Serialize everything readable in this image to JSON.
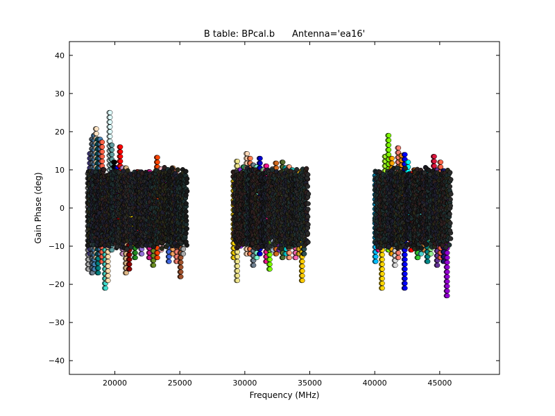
{
  "chart_data": {
    "type": "scatter",
    "title": "B table: BPcal.b      Antenna='ea16'",
    "xlabel": "Frequency (MHz)",
    "ylabel": "Gain Phase (deg)",
    "xlim": [
      16500,
      49600
    ],
    "ylim": [
      -43.6,
      43.6
    ],
    "xticks": [
      20000,
      25000,
      30000,
      35000,
      40000,
      45000
    ],
    "xtick_labels": [
      "20000",
      "25000",
      "30000",
      "35000",
      "40000",
      "45000"
    ],
    "yticks": [
      -40,
      -30,
      -20,
      -10,
      0,
      10,
      20,
      30,
      40
    ],
    "ytick_labels": [
      "−40",
      "−30",
      "−20",
      "−10",
      "0",
      "10",
      "20",
      "30",
      "40"
    ],
    "grid": false,
    "marker": "circle",
    "note": "columns: per-channel phase range [frequency MHz, min deg, max deg, color]",
    "columns": [
      [
        17900,
        -16,
        10,
        "#aaaaaa"
      ],
      [
        18050,
        -12,
        15,
        "#6a5acd"
      ],
      [
        18200,
        -17,
        19,
        "#708090"
      ],
      [
        18350,
        -16,
        20,
        "#4682b4"
      ],
      [
        18500,
        -13,
        21,
        "#ffe4c4"
      ],
      [
        18650,
        -17,
        19,
        "#008080"
      ],
      [
        18800,
        -12,
        19,
        "#4682b4"
      ],
      [
        18950,
        -14,
        18,
        "#ff6347"
      ],
      [
        19200,
        -21,
        -5,
        "#40e0d0"
      ],
      [
        19400,
        -19,
        -6,
        "#ffdead"
      ],
      [
        19550,
        5,
        26,
        "#e0ffff"
      ],
      [
        19700,
        -11,
        17,
        "#5f9ea0"
      ],
      [
        19900,
        -8,
        12,
        "#000000"
      ],
      [
        20150,
        -7,
        11,
        "#0000ff"
      ],
      [
        20350,
        -9,
        17,
        "#ff0000"
      ],
      [
        20550,
        -12,
        11,
        "#dda0dd"
      ],
      [
        20800,
        -17,
        11,
        "#deb887"
      ],
      [
        21050,
        -16,
        -9,
        "#8b0000"
      ],
      [
        21300,
        -10,
        7,
        "#ffd700"
      ],
      [
        21500,
        -13,
        6,
        "#228b22"
      ],
      [
        21700,
        -8,
        10,
        "#b22222"
      ],
      [
        22000,
        -12,
        8,
        "#9370db"
      ],
      [
        22300,
        -7,
        7,
        "#3cb371"
      ],
      [
        22600,
        -13,
        10,
        "#c71585"
      ],
      [
        22900,
        -15,
        9,
        "#6b8e23"
      ],
      [
        23200,
        -13,
        14,
        "#ff4500"
      ],
      [
        23500,
        -11,
        11,
        "#ffb6c1"
      ],
      [
        23800,
        -5,
        10,
        "#800080"
      ],
      [
        24100,
        -14,
        7,
        "#4169e1"
      ],
      [
        24400,
        -12,
        11,
        "#f4a460"
      ],
      [
        24700,
        -14,
        10,
        "#fa8072"
      ],
      [
        25000,
        -18,
        6,
        "#a0522d"
      ],
      [
        25200,
        -12,
        8,
        "#a9a9a9"
      ],
      [
        29100,
        -13,
        9,
        "#ffd700"
      ],
      [
        29350,
        -19,
        13,
        "#f0e68c"
      ],
      [
        29600,
        -10,
        10,
        "#8a2be2"
      ],
      [
        29850,
        -8,
        11,
        "#2e8b57"
      ],
      [
        30100,
        -12,
        15,
        "#ffdab9"
      ],
      [
        30350,
        -12,
        14,
        "#ff7f50"
      ],
      [
        30600,
        -15,
        12,
        "#708090"
      ],
      [
        30850,
        -13,
        11,
        "#7fffd4"
      ],
      [
        31100,
        -12,
        13,
        "#0000cd"
      ],
      [
        31350,
        -10,
        10,
        "#8fbc8f"
      ],
      [
        31600,
        -14,
        11,
        "#ff1493"
      ],
      [
        31850,
        -16,
        10,
        "#7cfc00"
      ],
      [
        32100,
        -11,
        11,
        "#b0c4de"
      ],
      [
        32350,
        -12,
        12,
        "#d2691e"
      ],
      [
        32600,
        -11,
        9,
        "#9932cc"
      ],
      [
        32850,
        -13,
        12,
        "#556b2f"
      ],
      [
        33100,
        -12,
        11,
        "#00ced1"
      ],
      [
        33350,
        -13,
        11,
        "#ffa07a"
      ],
      [
        33600,
        -10,
        10,
        "#20b2aa"
      ],
      [
        33850,
        -13,
        9,
        "#ff69b4"
      ],
      [
        34100,
        -12,
        10,
        "#daa520"
      ],
      [
        34350,
        -19,
        10,
        "#ffcc00"
      ],
      [
        34500,
        -12,
        9,
        "#2f4f4f"
      ],
      [
        40000,
        -14,
        9,
        "#00bfff"
      ],
      [
        40250,
        -11,
        8,
        "#ff1493"
      ],
      [
        40500,
        -21,
        9,
        "#ffd700"
      ],
      [
        40750,
        -9,
        14,
        "#adff2f"
      ],
      [
        41000,
        -11,
        19,
        "#7fff00"
      ],
      [
        41250,
        -12,
        13,
        "#ffa500"
      ],
      [
        41500,
        -15,
        10,
        "#dcdcdc"
      ],
      [
        41750,
        -13,
        16,
        "#fa8072"
      ],
      [
        42000,
        -10,
        14,
        "#ff8c00"
      ],
      [
        42250,
        -21,
        15,
        "#0000ff"
      ],
      [
        42500,
        -8,
        13,
        "#00ffff"
      ],
      [
        42750,
        -11,
        9,
        "#ff0000"
      ],
      [
        43000,
        -10,
        10,
        "#8b4513"
      ],
      [
        43250,
        -13,
        9,
        "#32cd32"
      ],
      [
        43500,
        -12,
        10,
        "#48d1cc"
      ],
      [
        43750,
        -11,
        9,
        "#cd853f"
      ],
      [
        44000,
        -14,
        10,
        "#008b8b"
      ],
      [
        44250,
        -12,
        9,
        "#90ee90"
      ],
      [
        44500,
        -9,
        14,
        "#dc143c"
      ],
      [
        44750,
        -15,
        11,
        "#663399"
      ],
      [
        45000,
        -13,
        12,
        "#ff6347"
      ],
      [
        45250,
        -14,
        10,
        "#191970"
      ],
      [
        45500,
        -23,
        5,
        "#9400d3"
      ]
    ],
    "core": {
      "phase_range": [
        -8,
        8
      ],
      "colors": [
        "#1a1a1a",
        "#2b2b2b",
        "#1f3030",
        "#302020",
        "#202030",
        "#2a2a1a"
      ]
    }
  }
}
